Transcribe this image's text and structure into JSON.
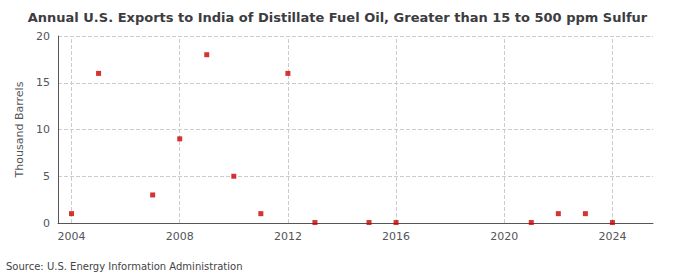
{
  "chart_data": {
    "type": "scatter",
    "title": "Annual U.S. Exports to India of Distillate Fuel Oil, Greater than 15 to 500 ppm Sulfur",
    "ylabel": "Thousand Barrels",
    "annotation": "Source: U.S. Energy Information Administration",
    "x": [
      2004,
      2005,
      2007,
      2008,
      2009,
      2010,
      2011,
      2012,
      2013,
      2015,
      2016,
      2021,
      2022,
      2023,
      2024
    ],
    "values": [
      1,
      16,
      3,
      9,
      18,
      5,
      1,
      16,
      0.05,
      0.05,
      0.05,
      0.05,
      1,
      1,
      0.05
    ],
    "color": "#cc0000",
    "marker": "square",
    "xlim": [
      2003.5,
      2025.5
    ],
    "xticks": [
      2004,
      2008,
      2012,
      2016,
      2020,
      2024
    ],
    "ylim": [
      0,
      20
    ],
    "yticks": [
      0,
      5,
      10,
      15,
      20
    ],
    "grid": true
  }
}
